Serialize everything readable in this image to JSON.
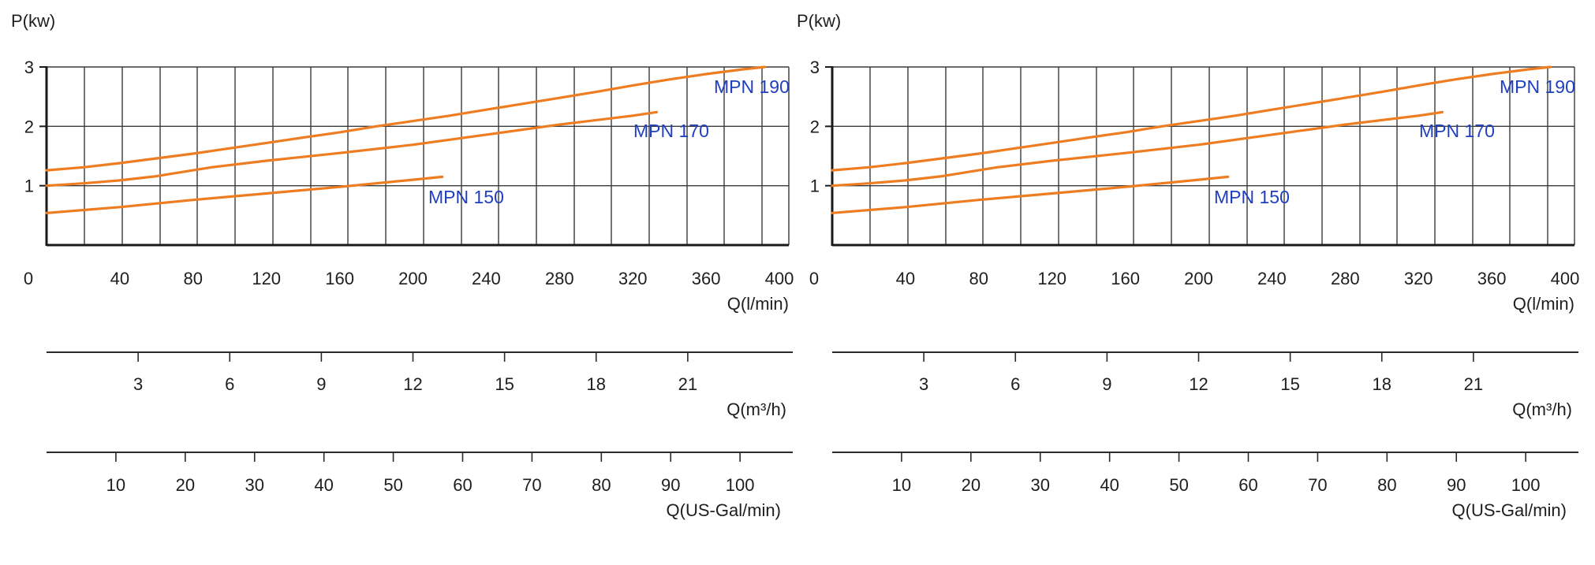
{
  "chart_data": [
    {
      "type": "line",
      "ylabel": "P(kw)",
      "xlabel": "Q(l/min)",
      "ylim": [
        0,
        3
      ],
      "xlim": [
        0,
        400
      ],
      "grid": true,
      "y_ticks": [
        "1",
        "2",
        "3"
      ],
      "x_ticks": [
        {
          "v": 0,
          "label": "0"
        },
        {
          "v": 40,
          "label": "40"
        },
        {
          "v": 80,
          "label": "80"
        },
        {
          "v": 120,
          "label": "120"
        },
        {
          "v": 160,
          "label": "160"
        },
        {
          "v": 200,
          "label": "200"
        },
        {
          "v": 240,
          "label": "240"
        },
        {
          "v": 280,
          "label": "280"
        },
        {
          "v": 320,
          "label": "320"
        },
        {
          "v": 360,
          "label": "360"
        },
        {
          "v": 400,
          "label": "400"
        }
      ],
      "series": [
        {
          "name": "MPN 190",
          "color": "#ee7d22",
          "x": [
            0,
            20,
            40,
            60,
            80,
            100,
            120,
            140,
            160,
            180,
            200,
            220,
            240,
            260,
            280,
            300,
            320,
            340,
            360,
            380,
            392
          ],
          "y": [
            1.26,
            1.31,
            1.38,
            1.46,
            1.54,
            1.63,
            1.72,
            1.81,
            1.9,
            2.0,
            2.09,
            2.18,
            2.28,
            2.38,
            2.48,
            2.58,
            2.69,
            2.79,
            2.88,
            2.96,
            3.0
          ]
        },
        {
          "name": "MPN 170",
          "color": "#ee7d22",
          "x": [
            0,
            20,
            40,
            60,
            80,
            90,
            120,
            160,
            200,
            240,
            280,
            320,
            333
          ],
          "y": [
            1.0,
            1.04,
            1.09,
            1.16,
            1.26,
            1.31,
            1.42,
            1.55,
            1.69,
            1.86,
            2.03,
            2.18,
            2.24
          ]
        },
        {
          "name": "MPN 150",
          "color": "#ee7d22",
          "x": [
            0,
            40,
            80,
            120,
            160,
            200,
            216
          ],
          "y": [
            0.54,
            0.64,
            0.76,
            0.87,
            0.98,
            1.1,
            1.15
          ]
        }
      ],
      "secondary_axes": [
        {
          "label": "Q(m³/h)",
          "max": 24,
          "ticks": [
            "3",
            "6",
            "9",
            "12",
            "15",
            "18",
            "21"
          ],
          "values": [
            3,
            6,
            9,
            12,
            15,
            18,
            21
          ]
        },
        {
          "label": "Q(US-Gal/min)",
          "max": 105.67,
          "ticks": [
            "10",
            "20",
            "30",
            "40",
            "50",
            "60",
            "70",
            "80",
            "90",
            "100"
          ],
          "values": [
            10,
            20,
            30,
            40,
            50,
            60,
            70,
            80,
            90,
            100
          ]
        }
      ]
    },
    {
      "type": "line",
      "ylabel": "P(kw)",
      "xlabel": "Q(l/min)",
      "ylim": [
        0,
        3
      ],
      "xlim": [
        0,
        400
      ],
      "grid": true,
      "y_ticks": [
        "1",
        "2",
        "3"
      ],
      "x_ticks": [
        {
          "v": 0,
          "label": "0"
        },
        {
          "v": 40,
          "label": "40"
        },
        {
          "v": 80,
          "label": "80"
        },
        {
          "v": 120,
          "label": "120"
        },
        {
          "v": 160,
          "label": "160"
        },
        {
          "v": 200,
          "label": "200"
        },
        {
          "v": 240,
          "label": "240"
        },
        {
          "v": 280,
          "label": "280"
        },
        {
          "v": 320,
          "label": "320"
        },
        {
          "v": 360,
          "label": "360"
        },
        {
          "v": 400,
          "label": "400"
        }
      ],
      "series": [
        {
          "name": "MPN 190",
          "color": "#ee7d22",
          "x": [
            0,
            20,
            40,
            60,
            80,
            100,
            120,
            140,
            160,
            180,
            200,
            220,
            240,
            260,
            280,
            300,
            320,
            340,
            360,
            380,
            392
          ],
          "y": [
            1.26,
            1.31,
            1.38,
            1.46,
            1.54,
            1.63,
            1.72,
            1.81,
            1.9,
            2.0,
            2.09,
            2.18,
            2.28,
            2.38,
            2.48,
            2.58,
            2.69,
            2.79,
            2.88,
            2.96,
            3.0
          ]
        },
        {
          "name": "MPN 170",
          "color": "#ee7d22",
          "x": [
            0,
            20,
            40,
            60,
            80,
            90,
            120,
            160,
            200,
            240,
            280,
            320,
            333
          ],
          "y": [
            1.0,
            1.04,
            1.09,
            1.16,
            1.26,
            1.31,
            1.42,
            1.55,
            1.69,
            1.86,
            2.03,
            2.18,
            2.24
          ]
        },
        {
          "name": "MPN 150",
          "color": "#ee7d22",
          "x": [
            0,
            40,
            80,
            120,
            160,
            200,
            216
          ],
          "y": [
            0.54,
            0.64,
            0.76,
            0.87,
            0.98,
            1.1,
            1.15
          ]
        }
      ],
      "secondary_axes": [
        {
          "label": "Q(m³/h)",
          "max": 24,
          "ticks": [
            "3",
            "6",
            "9",
            "12",
            "15",
            "18",
            "21"
          ],
          "values": [
            3,
            6,
            9,
            12,
            15,
            18,
            21
          ]
        },
        {
          "label": "Q(US-Gal/min)",
          "max": 105.67,
          "ticks": [
            "10",
            "20",
            "30",
            "40",
            "50",
            "60",
            "70",
            "80",
            "90",
            "100"
          ],
          "values": [
            10,
            20,
            30,
            40,
            50,
            60,
            70,
            80,
            90,
            100
          ]
        }
      ]
    }
  ]
}
